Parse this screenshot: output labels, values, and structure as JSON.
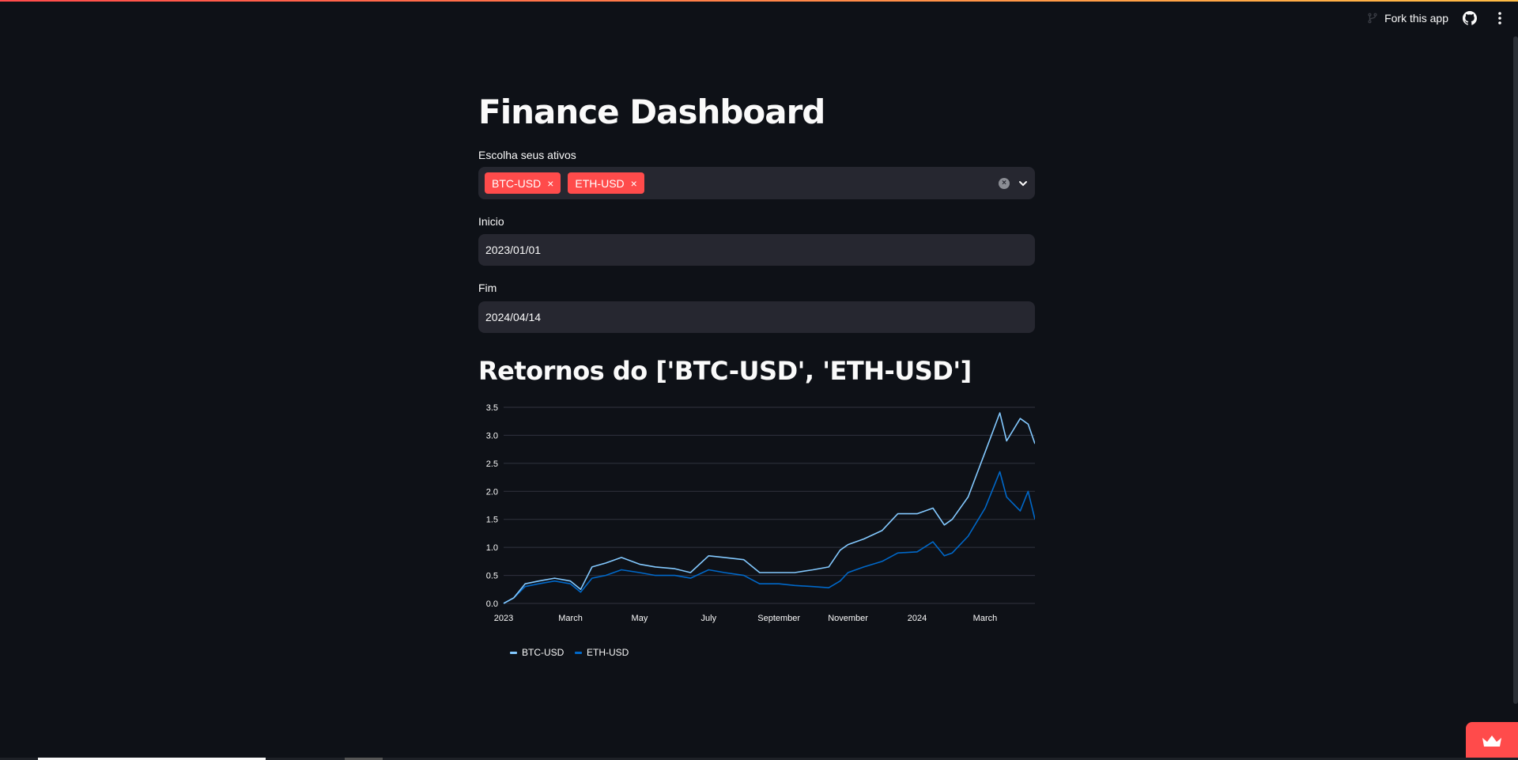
{
  "header": {
    "fork_label": "Fork this app"
  },
  "main": {
    "title": "Finance Dashboard",
    "assets_label": "Escolha seus ativos",
    "selected_assets": [
      "BTC-USD",
      "ETH-USD"
    ],
    "start_label": "Inicio",
    "start_value": "2023/01/01",
    "end_label": "Fim",
    "end_value": "2024/04/14",
    "chart_title": "Retornos do ['BTC-USD', 'ETH-USD']"
  },
  "colors": {
    "accent": "#ff4b4b",
    "btc": "#83c9ff",
    "eth": "#0068c9",
    "background": "#0e1117",
    "widget": "#262730"
  },
  "chart_data": {
    "type": "line",
    "title": "",
    "xlabel": "",
    "ylabel": "",
    "x_ticks": [
      "2023",
      "March",
      "May",
      "July",
      "September",
      "November",
      "2024",
      "March"
    ],
    "x_tick_dates": [
      "2023-01-01",
      "2023-03-01",
      "2023-05-01",
      "2023-07-01",
      "2023-09-01",
      "2023-11-01",
      "2024-01-01",
      "2024-03-01"
    ],
    "x_range": [
      "2023-01-01",
      "2024-04-14"
    ],
    "y_ticks": [
      "0.0",
      "0.5",
      "1.0",
      "1.5",
      "2.0",
      "2.5",
      "3.0",
      "3.5"
    ],
    "ylim": [
      0,
      3.5
    ],
    "grid": "horizontal",
    "legend": "bottom-left",
    "series": [
      {
        "name": "BTC-USD",
        "color": "#83c9ff",
        "x": [
          "2023-01-01",
          "2023-01-10",
          "2023-01-20",
          "2023-02-01",
          "2023-02-15",
          "2023-03-01",
          "2023-03-10",
          "2023-03-20",
          "2023-04-01",
          "2023-04-15",
          "2023-05-01",
          "2023-05-15",
          "2023-06-01",
          "2023-06-15",
          "2023-07-01",
          "2023-07-15",
          "2023-08-01",
          "2023-08-15",
          "2023-09-01",
          "2023-09-15",
          "2023-10-01",
          "2023-10-15",
          "2023-10-25",
          "2023-11-01",
          "2023-11-15",
          "2023-12-01",
          "2023-12-15",
          "2024-01-01",
          "2024-01-15",
          "2024-01-25",
          "2024-02-01",
          "2024-02-15",
          "2024-03-01",
          "2024-03-14",
          "2024-03-20",
          "2024-04-01",
          "2024-04-08",
          "2024-04-14"
        ],
        "y": [
          0.0,
          0.1,
          0.35,
          0.4,
          0.45,
          0.4,
          0.25,
          0.65,
          0.72,
          0.82,
          0.7,
          0.65,
          0.62,
          0.55,
          0.85,
          0.82,
          0.78,
          0.55,
          0.55,
          0.55,
          0.6,
          0.65,
          0.95,
          1.05,
          1.15,
          1.3,
          1.6,
          1.6,
          1.7,
          1.4,
          1.5,
          1.9,
          2.7,
          3.4,
          2.9,
          3.3,
          3.2,
          2.85
        ]
      },
      {
        "name": "ETH-USD",
        "color": "#0068c9",
        "x": [
          "2023-01-01",
          "2023-01-10",
          "2023-01-20",
          "2023-02-01",
          "2023-02-15",
          "2023-03-01",
          "2023-03-10",
          "2023-03-20",
          "2023-04-01",
          "2023-04-15",
          "2023-05-01",
          "2023-05-15",
          "2023-06-01",
          "2023-06-15",
          "2023-07-01",
          "2023-07-15",
          "2023-08-01",
          "2023-08-15",
          "2023-09-01",
          "2023-09-15",
          "2023-10-01",
          "2023-10-15",
          "2023-10-25",
          "2023-11-01",
          "2023-11-15",
          "2023-12-01",
          "2023-12-15",
          "2024-01-01",
          "2024-01-15",
          "2024-01-25",
          "2024-02-01",
          "2024-02-15",
          "2024-03-01",
          "2024-03-14",
          "2024-03-20",
          "2024-04-01",
          "2024-04-08",
          "2024-04-14"
        ],
        "y": [
          0.0,
          0.1,
          0.3,
          0.35,
          0.4,
          0.35,
          0.2,
          0.45,
          0.5,
          0.6,
          0.55,
          0.5,
          0.5,
          0.45,
          0.6,
          0.55,
          0.5,
          0.35,
          0.35,
          0.32,
          0.3,
          0.28,
          0.4,
          0.55,
          0.65,
          0.75,
          0.9,
          0.92,
          1.1,
          0.85,
          0.9,
          1.2,
          1.7,
          2.35,
          1.9,
          1.65,
          2.0,
          1.5
        ]
      }
    ]
  }
}
